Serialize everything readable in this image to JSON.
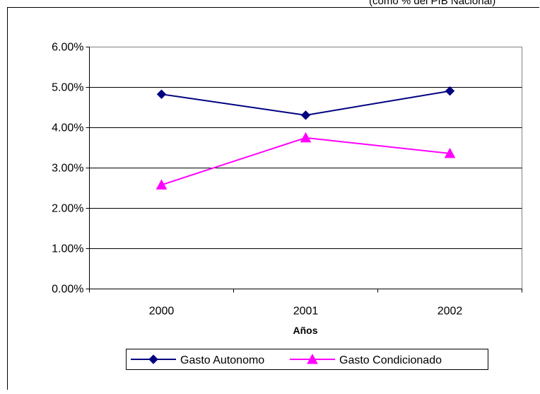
{
  "header": {
    "note": "(como % del PIB Nacional)"
  },
  "chart_data": {
    "type": "line",
    "title": "",
    "categories": [
      "2000",
      "2001",
      "2002"
    ],
    "xlabel": "Años",
    "ylabel": "",
    "ylim": [
      0,
      0.06
    ],
    "yticks": [
      "0.00%",
      "1.00%",
      "2.00%",
      "3.00%",
      "4.00%",
      "5.00%",
      "6.00%"
    ],
    "grid": true,
    "legend": "bottom",
    "series": [
      {
        "name": "Gasto Autonomo",
        "values": [
          0.0483,
          0.0431,
          0.0491
        ],
        "color": "#000080",
        "marker": "diamond"
      },
      {
        "name": "Gasto Condicionado",
        "values": [
          0.0258,
          0.0375,
          0.0336
        ],
        "color": "#ff00ff",
        "marker": "triangle"
      }
    ]
  }
}
